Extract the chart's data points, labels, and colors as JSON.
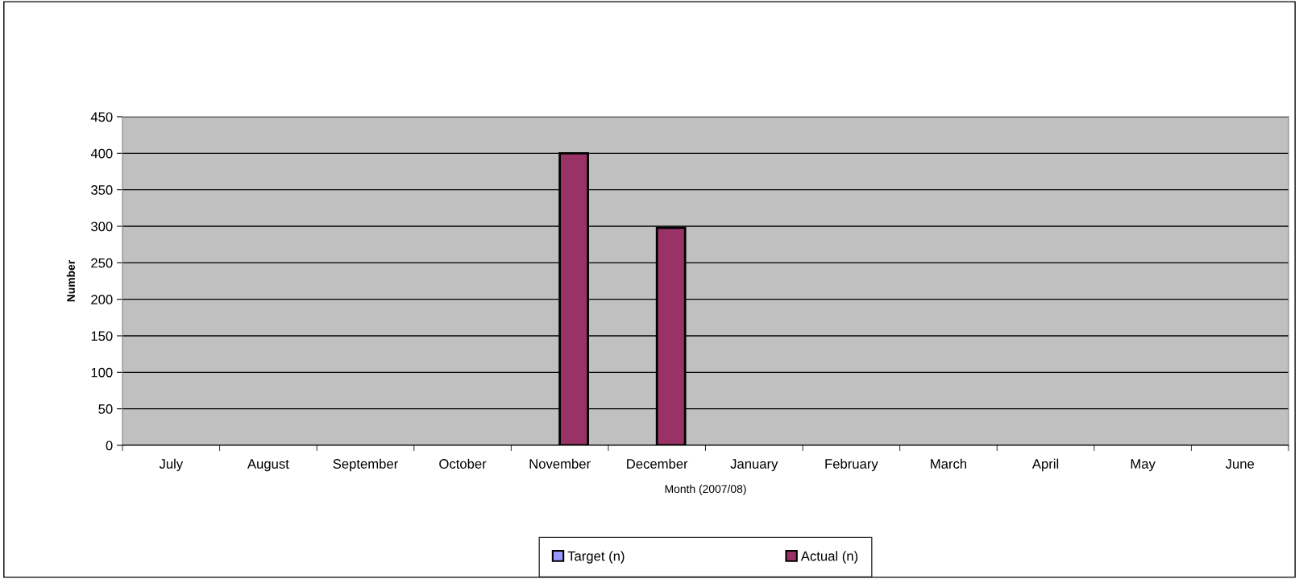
{
  "chart_data": {
    "type": "bar",
    "categories": [
      "July",
      "August",
      "September",
      "October",
      "November",
      "December",
      "January",
      "February",
      "March",
      "April",
      "May",
      "June"
    ],
    "series": [
      {
        "name": "Target (n)",
        "color": "#9999ff",
        "values": [
          null,
          null,
          null,
          null,
          null,
          null,
          null,
          null,
          null,
          null,
          null,
          null
        ]
      },
      {
        "name": "Actual (n)",
        "color": "#993366",
        "values": [
          null,
          null,
          null,
          null,
          400,
          298,
          null,
          null,
          null,
          null,
          null,
          null
        ]
      }
    ],
    "xlabel": "Month (2007/08)",
    "ylabel": "Number",
    "ylim": [
      0,
      450
    ],
    "yticks": [
      0,
      50,
      100,
      150,
      200,
      250,
      300,
      350,
      400,
      450
    ],
    "grid": "y",
    "legend": "bottom"
  }
}
